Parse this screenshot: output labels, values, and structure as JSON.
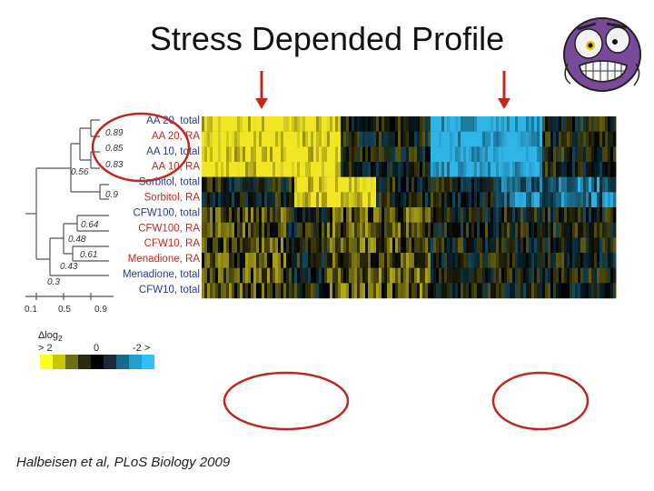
{
  "slide": {
    "title": "Stress Depended Profile",
    "citation": "Halbeisen et al, PLoS Biology 2009"
  },
  "dendrogram": {
    "samples": [
      {
        "label": "AA 20, total",
        "color": "#2a3a8c"
      },
      {
        "label": "AA 20, RA",
        "color": "#c0281e"
      },
      {
        "label": "AA 10, total",
        "color": "#2a3a8c"
      },
      {
        "label": "AA 10, RA",
        "color": "#c0281e"
      },
      {
        "label": "Sorbitol, total",
        "color": "#2a3a8c"
      },
      {
        "label": "Sorbitol, RA",
        "color": "#c0281e"
      },
      {
        "label": "CFW100, total",
        "color": "#2a3a8c"
      },
      {
        "label": "CFW100, RA",
        "color": "#c0281e"
      },
      {
        "label": "CFW10, RA",
        "color": "#c0281e"
      },
      {
        "label": "Menadione, RA",
        "color": "#c0281e"
      },
      {
        "label": "Menadione, total",
        "color": "#2a3a8c"
      },
      {
        "label": "CFW10, total",
        "color": "#2a3a8c"
      }
    ],
    "node_values": [
      "0.89",
      "0.85",
      "0.83",
      "0.56",
      "0.9",
      "0.64",
      "0.48",
      "0.61",
      "0.43",
      "0.3"
    ],
    "axis_ticks": [
      "0.1",
      "0.5",
      "0.9"
    ]
  },
  "legend": {
    "title": "Δlog",
    "subscript": "2",
    "left_label": "> 2",
    "mid_label": "0",
    "right_label": "-2 >",
    "colors": [
      "#ffff22",
      "#c8c800",
      "#6e6e18",
      "#2a2a10",
      "#000000",
      "#1a2a38",
      "#1a6888",
      "#22a0d0",
      "#30c0ff"
    ]
  },
  "heatmap": {
    "note_colors": {
      "up": "#f0e020",
      "down": "#30b8e8",
      "zero": "#000000"
    }
  },
  "annotations": {
    "arrow_color": "#c0281e",
    "ellipse_color": "#c0281e"
  }
}
